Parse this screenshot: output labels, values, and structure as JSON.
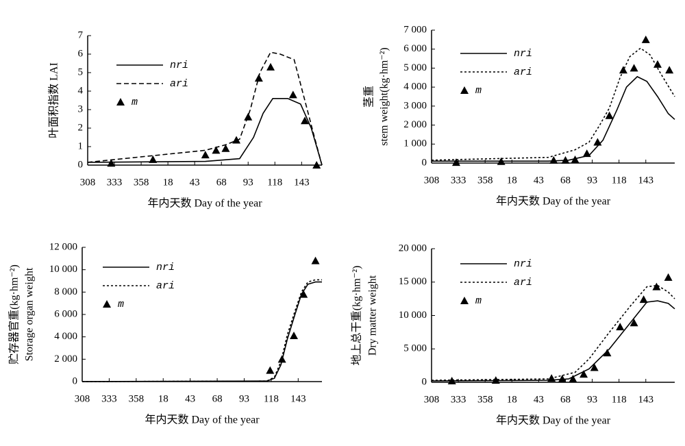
{
  "chart_data": [
    {
      "type": "line",
      "ylabel": [
        "叶面积指数 LAI"
      ],
      "xlabel": "年内天数 Day of the year",
      "xlim": [
        308,
        527
      ],
      "ylim": [
        0,
        7
      ],
      "xticks": [
        308,
        333,
        358,
        {
          "value": 383,
          "label": "18"
        },
        {
          "value": 408,
          "label": "43"
        },
        {
          "value": 433,
          "label": "68"
        },
        {
          "value": 458,
          "label": "93"
        },
        {
          "value": 483,
          "label": "118"
        },
        {
          "value": 508,
          "label": "143"
        }
      ],
      "yticks": [
        0,
        1,
        2,
        3,
        4,
        5,
        6,
        7
      ],
      "series": [
        {
          "name": "nri",
          "color": "#000000",
          "style": "solid",
          "x": [
            308,
            418,
            450,
            463,
            472,
            481,
            495,
            507,
            517,
            523,
            527
          ],
          "values": [
            0.15,
            0.2,
            0.35,
            1.5,
            2.8,
            3.6,
            3.6,
            3.3,
            2.0,
            0.8,
            0
          ]
        },
        {
          "name": "ari",
          "color": "#000000",
          "style": "dashed",
          "x": [
            308,
            418,
            437,
            450,
            460,
            469,
            479,
            488,
            501,
            511,
            520,
            527
          ],
          "values": [
            0.15,
            0.8,
            1.1,
            1.4,
            3,
            5,
            6.1,
            6.0,
            5.7,
            3.5,
            1.5,
            0
          ]
        },
        {
          "name": "m",
          "color": "#000000",
          "style": "triangle",
          "x": [
            330,
            369,
            418,
            428,
            437,
            447,
            458,
            468,
            479,
            500,
            511,
            522
          ],
          "values": [
            0.1,
            0.3,
            0.55,
            0.8,
            0.9,
            1.35,
            2.6,
            4.7,
            5.3,
            3.8,
            2.4,
            0
          ]
        }
      ]
    },
    {
      "type": "line",
      "ylabel": [
        "茎重",
        "stem weight(kg·hm⁻²)"
      ],
      "xlabel": "年内天数 Day of the year",
      "xlim": [
        308,
        535
      ],
      "ylim": [
        0,
        7000
      ],
      "xticks": [
        308,
        333,
        358,
        {
          "value": 383,
          "label": "18"
        },
        {
          "value": 408,
          "label": "43"
        },
        {
          "value": 433,
          "label": "68"
        },
        {
          "value": 458,
          "label": "93"
        },
        {
          "value": 483,
          "label": "118"
        },
        {
          "value": 508,
          "label": "143"
        }
      ],
      "yticks": [
        0,
        {
          "value": 1000,
          "label": "1 000"
        },
        {
          "value": 2000,
          "label": "2 000"
        },
        {
          "value": 3000,
          "label": "3 000"
        },
        {
          "value": 4000,
          "label": "4 000"
        },
        {
          "value": 5000,
          "label": "5 000"
        },
        {
          "value": 6000,
          "label": "6 000"
        },
        {
          "value": 7000,
          "label": "7 000"
        }
      ],
      "series": [
        {
          "name": "nri",
          "color": "#000000",
          "style": "solid",
          "x": [
            308,
            417,
            436,
            455,
            468,
            481,
            490,
            500,
            509,
            519,
            529,
            535
          ],
          "values": [
            100,
            100,
            150,
            400,
            1200,
            2800,
            4000,
            4550,
            4300,
            3500,
            2600,
            2300
          ]
        },
        {
          "name": "ari",
          "color": "#000000",
          "style": "dotted",
          "x": [
            308,
            417,
            442,
            455,
            465,
            474,
            484,
            493,
            503,
            512,
            522,
            535
          ],
          "values": [
            150,
            300,
            700,
            1100,
            2000,
            2900,
            4500,
            5600,
            6050,
            5700,
            4700,
            3500
          ]
        },
        {
          "name": "m",
          "color": "#000000",
          "style": "triangle",
          "x": [
            331,
            373,
            422,
            433,
            442,
            453,
            463,
            474,
            487,
            497,
            508,
            519,
            530
          ],
          "values": [
            30,
            80,
            150,
            150,
            180,
            500,
            1100,
            2500,
            4900,
            5000,
            6500,
            5200,
            4900
          ]
        }
      ]
    },
    {
      "type": "line",
      "ylabel": [
        "贮存器官重(kg·hm⁻²)",
        "Storage organ weight"
      ],
      "xlabel": "年内天数 Day of the year",
      "xlim": [
        308,
        530
      ],
      "ylim": [
        0,
        12000
      ],
      "xticks": [
        308,
        333,
        358,
        {
          "value": 383,
          "label": "18"
        },
        {
          "value": 408,
          "label": "43"
        },
        {
          "value": 433,
          "label": "68"
        },
        {
          "value": 458,
          "label": "93"
        },
        {
          "value": 483,
          "label": "118"
        },
        {
          "value": 508,
          "label": "143"
        }
      ],
      "yticks": [
        0,
        {
          "value": 2000,
          "label": "2 000"
        },
        {
          "value": 4000,
          "label": "4 000"
        },
        {
          "value": 6000,
          "label": "6 000"
        },
        {
          "value": 8000,
          "label": "8 000"
        },
        {
          "value": 10000,
          "label": "10 000"
        },
        {
          "value": 12000,
          "label": "12 000"
        }
      ],
      "series": [
        {
          "name": "nri",
          "color": "#000000",
          "style": "solid",
          "x": [
            308,
            479,
            486,
            492,
            498,
            505,
            511,
            517,
            524,
            530
          ],
          "values": [
            0,
            50,
            300,
            1500,
            3800,
            6000,
            7800,
            8700,
            8900,
            8900
          ]
        },
        {
          "name": "ari",
          "color": "#000000",
          "style": "dotted",
          "x": [
            308,
            479,
            486,
            492,
            498,
            505,
            511,
            517,
            524,
            530
          ],
          "values": [
            0,
            50,
            400,
            1800,
            4200,
            6300,
            8000,
            8900,
            9100,
            9100
          ]
        },
        {
          "name": "m",
          "color": "#000000",
          "style": "triangle",
          "x": [
            482,
            493,
            504,
            513,
            524
          ],
          "values": [
            1000,
            2000,
            4100,
            7800,
            10800
          ]
        }
      ]
    },
    {
      "type": "line",
      "ylabel": [
        "地上总干重(kg·hm⁻²)",
        "Dry matter weight"
      ],
      "xlabel": "年内天数 Day of the year",
      "xlim": [
        308,
        535
      ],
      "ylim": [
        0,
        20000
      ],
      "xticks": [
        308,
        333,
        358,
        {
          "value": 383,
          "label": "18"
        },
        {
          "value": 408,
          "label": "43"
        },
        {
          "value": 433,
          "label": "68"
        },
        {
          "value": 458,
          "label": "93"
        },
        {
          "value": 483,
          "label": "118"
        },
        {
          "value": 508,
          "label": "143"
        }
      ],
      "yticks": [
        0,
        {
          "value": 5000,
          "label": "5 000"
        },
        {
          "value": 10000,
          "label": "10 000"
        },
        {
          "value": 15000,
          "label": "15 000"
        },
        {
          "value": 20000,
          "label": "20 000"
        }
      ],
      "series": [
        {
          "name": "nri",
          "color": "#000000",
          "style": "solid",
          "x": [
            308,
            417,
            436,
            455,
            474,
            494,
            509,
            519,
            529,
            535
          ],
          "values": [
            200,
            300,
            500,
            2000,
            5000,
            9000,
            12000,
            12200,
            11800,
            11000
          ]
        },
        {
          "name": "ari",
          "color": "#000000",
          "style": "dotted",
          "x": [
            308,
            417,
            442,
            455,
            474,
            494,
            509,
            519,
            529,
            535
          ],
          "values": [
            300,
            500,
            1500,
            3500,
            7500,
            11500,
            14300,
            14500,
            13500,
            12500
          ]
        },
        {
          "name": "m",
          "color": "#000000",
          "style": "triangle",
          "x": [
            327,
            368,
            420,
            430,
            440,
            450,
            460,
            472,
            484,
            497,
            506,
            518,
            529
          ],
          "values": [
            200,
            300,
            600,
            500,
            500,
            1200,
            2200,
            4400,
            8300,
            8900,
            12400,
            14300,
            15700
          ]
        }
      ]
    }
  ]
}
